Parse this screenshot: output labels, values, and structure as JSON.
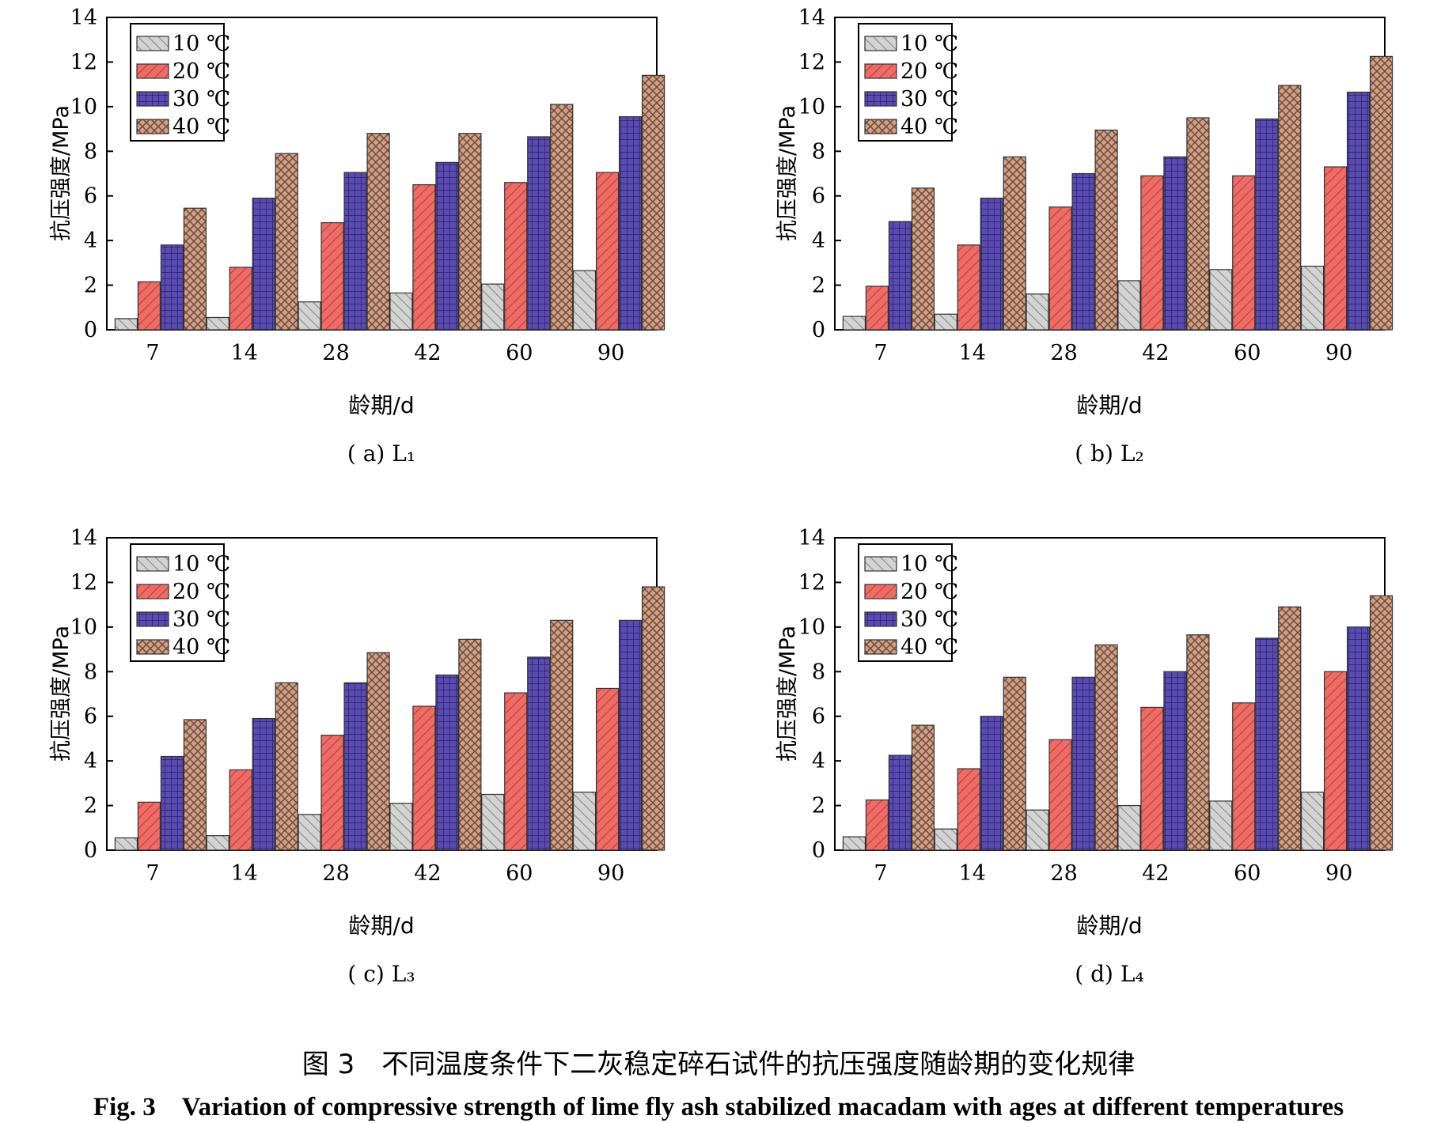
{
  "colors": {
    "10C": "#c9c9c9",
    "20C": "#ee6f6a",
    "30C": "#5a4bb0",
    "40C": "#c99a82"
  },
  "caption": {
    "cn": "图 3　不同温度条件下二灰稳定碎石试件的抗压强度随龄期的变化规律",
    "en": "Fig. 3　Variation of compressive strength of lime fly ash stabilized macadam with ages at different temperatures"
  },
  "chart_data": [
    {
      "type": "bar",
      "title": "( a)  L₁",
      "xlabel": "龄期/d",
      "ylabel": "抗压强度/MPa",
      "ylim": [
        0,
        14
      ],
      "yticks": [
        "0",
        "2",
        "4",
        "6",
        "8",
        "10",
        "12",
        "14"
      ],
      "categories": [
        "7",
        "14",
        "28",
        "42",
        "60",
        "90"
      ],
      "legend": "top-left",
      "series": [
        {
          "name": "10 ℃",
          "values": [
            0.5,
            0.55,
            1.25,
            1.65,
            2.05,
            2.65
          ]
        },
        {
          "name": "20 ℃",
          "values": [
            2.15,
            2.8,
            4.8,
            6.5,
            6.6,
            7.05
          ]
        },
        {
          "name": "30 ℃",
          "values": [
            3.8,
            5.9,
            7.05,
            7.5,
            8.65,
            9.55
          ]
        },
        {
          "name": "40 ℃",
          "values": [
            5.45,
            7.9,
            8.8,
            8.8,
            10.1,
            11.4
          ]
        }
      ]
    },
    {
      "type": "bar",
      "title": "( b) L₂",
      "xlabel": "龄期/d",
      "ylabel": "抗压强度/MPa",
      "ylim": [
        0,
        14
      ],
      "yticks": [
        "0",
        "2",
        "4",
        "6",
        "8",
        "10",
        "12",
        "14"
      ],
      "categories": [
        "7",
        "14",
        "28",
        "42",
        "60",
        "90"
      ],
      "legend": "top-left",
      "series": [
        {
          "name": "10 ℃",
          "values": [
            0.6,
            0.7,
            1.6,
            2.2,
            2.7,
            2.85
          ]
        },
        {
          "name": "20 ℃",
          "values": [
            1.95,
            3.8,
            5.5,
            6.9,
            6.9,
            7.3
          ]
        },
        {
          "name": "30 ℃",
          "values": [
            4.85,
            5.9,
            7.0,
            7.75,
            9.45,
            10.65
          ]
        },
        {
          "name": "40 ℃",
          "values": [
            6.35,
            7.75,
            8.95,
            9.5,
            10.95,
            12.25
          ]
        }
      ]
    },
    {
      "type": "bar",
      "title": "( c) L₃",
      "xlabel": "龄期/d",
      "ylabel": "抗压强度/MPa",
      "ylim": [
        0,
        14
      ],
      "yticks": [
        "0",
        "2",
        "4",
        "6",
        "8",
        "10",
        "12",
        "14"
      ],
      "categories": [
        "7",
        "14",
        "28",
        "42",
        "60",
        "90"
      ],
      "legend": "top-left",
      "series": [
        {
          "name": "10 ℃",
          "values": [
            0.55,
            0.65,
            1.6,
            2.1,
            2.5,
            2.6
          ]
        },
        {
          "name": "20 ℃",
          "values": [
            2.15,
            3.6,
            5.15,
            6.45,
            7.05,
            7.25
          ]
        },
        {
          "name": "30 ℃",
          "values": [
            4.2,
            5.9,
            7.5,
            7.85,
            8.65,
            10.3
          ]
        },
        {
          "name": "40 ℃",
          "values": [
            5.85,
            7.5,
            8.85,
            9.45,
            10.3,
            11.8
          ]
        }
      ]
    },
    {
      "type": "bar",
      "title": "( d) L₄",
      "xlabel": "龄期/d",
      "ylabel": "抗压强度/MPa",
      "ylim": [
        0,
        14
      ],
      "yticks": [
        "0",
        "2",
        "4",
        "6",
        "8",
        "10",
        "12",
        "14"
      ],
      "categories": [
        "7",
        "14",
        "28",
        "42",
        "60",
        "90"
      ],
      "legend": "top-left",
      "series": [
        {
          "name": "10 ℃",
          "values": [
            0.6,
            0.95,
            1.8,
            2.0,
            2.2,
            2.6
          ]
        },
        {
          "name": "20 ℃",
          "values": [
            2.25,
            3.65,
            4.95,
            6.4,
            6.6,
            8.0
          ]
        },
        {
          "name": "30 ℃",
          "values": [
            4.25,
            6.0,
            7.75,
            8.0,
            9.5,
            10.0
          ]
        },
        {
          "name": "40 ℃",
          "values": [
            5.6,
            7.75,
            9.2,
            9.65,
            10.9,
            11.4
          ]
        }
      ]
    }
  ]
}
